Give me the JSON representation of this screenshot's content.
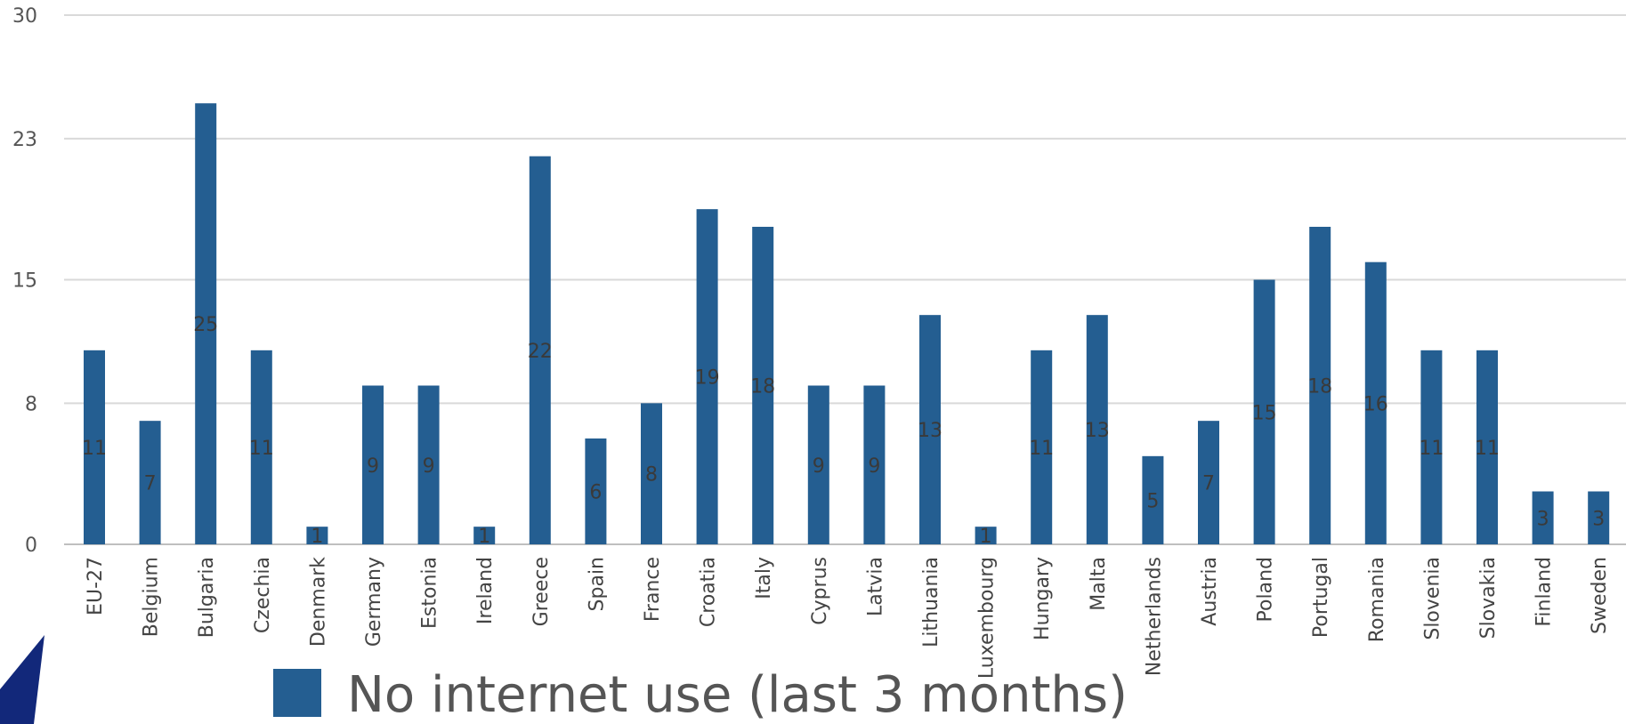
{
  "chart_data": {
    "type": "bar",
    "categories": [
      "EU-27",
      "Belgium",
      "Bulgaria",
      "Czechia",
      "Denmark",
      "Germany",
      "Estonia",
      "Ireland",
      "Greece",
      "Spain",
      "France",
      "Croatia",
      "Italy",
      "Cyprus",
      "Latvia",
      "Lithuania",
      "Luxembourg",
      "Hungary",
      "Malta",
      "Netherlands",
      "Austria",
      "Poland",
      "Portugal",
      "Romania",
      "Slovenia",
      "Slovakia",
      "Finland",
      "Sweden"
    ],
    "series": [
      {
        "name": "No internet use (last 3 months)",
        "color": "#245e91",
        "values": [
          11,
          7,
          25,
          11,
          1,
          9,
          9,
          1,
          22,
          6,
          8,
          19,
          18,
          9,
          9,
          13,
          1,
          11,
          13,
          5,
          7,
          15,
          18,
          16,
          11,
          11,
          3,
          3
        ],
        "data_labels": [
          "11",
          "7",
          "25",
          "11",
          "1",
          "9",
          "9",
          "1",
          "22",
          "6",
          "8",
          "19",
          "18",
          "9",
          "9",
          "13",
          "1",
          "11",
          "13",
          "5",
          "7",
          "15",
          "18",
          "16",
          "11",
          "11",
          "3",
          "3"
        ]
      }
    ],
    "y_ticks": [
      "0",
      "8",
      "15",
      "23",
      "30"
    ],
    "ylim": [
      0,
      30
    ],
    "grid": true,
    "legend": "bottom-left",
    "title": "",
    "xlabel": "",
    "ylabel": ""
  },
  "decoration": {
    "corner_accent_color": "#12287a"
  }
}
